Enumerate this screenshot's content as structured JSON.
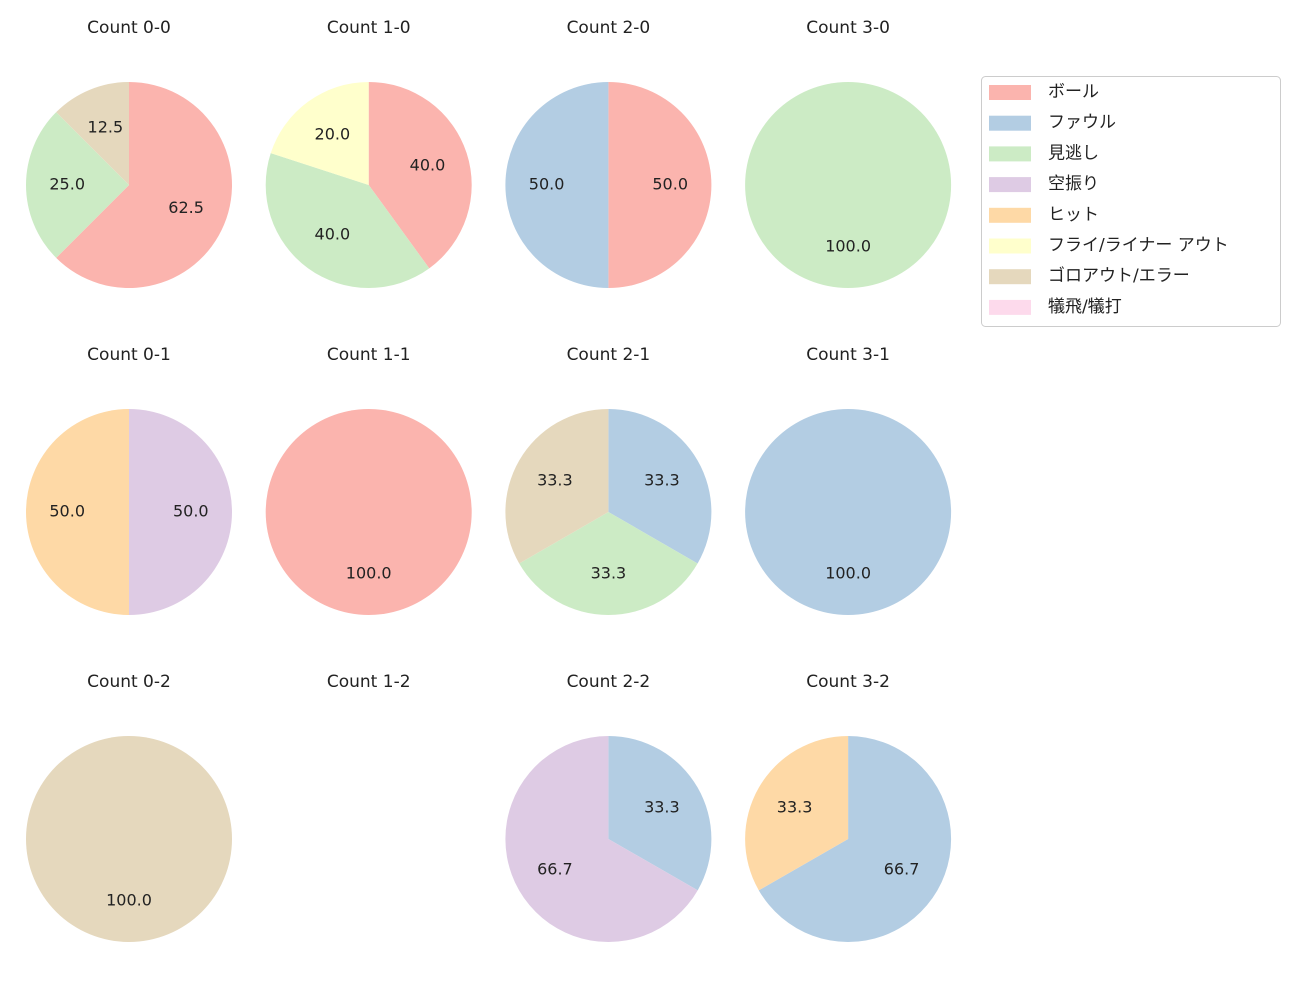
{
  "legend": {
    "labels": [
      "ボール",
      "ファウル",
      "見逃し",
      "空振り",
      "ヒット",
      "フライ/ライナー アウト",
      "ゴロアウト/エラー",
      "犠飛/犠打"
    ],
    "colors": [
      "#fbb4ae",
      "#b3cde3",
      "#ccebc5",
      "#decbe4",
      "#fed9a6",
      "#ffffcc",
      "#e5d8bd",
      "#fddaec"
    ]
  },
  "chart_data": [
    {
      "type": "pie",
      "title": "Count 0-0",
      "values": [
        62.5,
        null,
        25,
        null,
        null,
        null,
        12.5,
        null
      ],
      "value_labels": [
        "62.5",
        null,
        "25.0",
        null,
        null,
        null,
        "12.5",
        null
      ]
    },
    {
      "type": "pie",
      "title": "Count 1-0",
      "values": [
        40,
        null,
        40,
        null,
        null,
        20,
        null,
        null
      ],
      "value_labels": [
        "40.0",
        null,
        "40.0",
        null,
        null,
        "20.0",
        null,
        null
      ]
    },
    {
      "type": "pie",
      "title": "Count 2-0",
      "values": [
        50,
        50,
        null,
        null,
        null,
        null,
        null,
        null
      ],
      "value_labels": [
        "50.0",
        "50.0",
        null,
        null,
        null,
        null,
        null,
        null
      ]
    },
    {
      "type": "pie",
      "title": "Count 3-0",
      "values": [
        null,
        null,
        100,
        null,
        null,
        null,
        null,
        null
      ],
      "value_labels": [
        null,
        null,
        "100.0",
        null,
        null,
        null,
        null,
        null
      ]
    },
    {
      "type": "pie",
      "title": "Count 0-1",
      "values": [
        null,
        null,
        null,
        50,
        50,
        null,
        null,
        null
      ],
      "value_labels": [
        null,
        null,
        null,
        "50.0",
        "50.0",
        null,
        null,
        null
      ]
    },
    {
      "type": "pie",
      "title": "Count 1-1",
      "values": [
        100,
        null,
        null,
        null,
        null,
        null,
        null,
        null
      ],
      "value_labels": [
        "100.0",
        null,
        null,
        null,
        null,
        null,
        null,
        null
      ]
    },
    {
      "type": "pie",
      "title": "Count 2-1",
      "values": [
        null,
        33.3,
        33.3,
        null,
        null,
        null,
        33.3,
        null
      ],
      "value_labels": [
        null,
        "33.3",
        "33.3",
        null,
        null,
        null,
        "33.3",
        null
      ]
    },
    {
      "type": "pie",
      "title": "Count 3-1",
      "values": [
        null,
        100,
        null,
        null,
        null,
        null,
        null,
        null
      ],
      "value_labels": [
        null,
        "100.0",
        null,
        null,
        null,
        null,
        null,
        null
      ]
    },
    {
      "type": "pie",
      "title": "Count 0-2",
      "values": [
        null,
        null,
        null,
        null,
        null,
        null,
        100,
        null
      ],
      "value_labels": [
        null,
        null,
        null,
        null,
        null,
        null,
        "100.0",
        null
      ]
    },
    {
      "type": "pie",
      "title": "Count 1-2",
      "values": [
        null,
        null,
        null,
        null,
        null,
        null,
        null,
        null
      ],
      "value_labels": [
        null,
        null,
        null,
        null,
        null,
        null,
        null,
        null
      ]
    },
    {
      "type": "pie",
      "title": "Count 2-2",
      "values": [
        null,
        33.3,
        null,
        66.7,
        null,
        null,
        null,
        null
      ],
      "value_labels": [
        null,
        "33.3",
        null,
        "66.7",
        null,
        null,
        null,
        null
      ]
    },
    {
      "type": "pie",
      "title": "Count 3-2",
      "values": [
        null,
        66.7,
        null,
        null,
        33.3,
        null,
        null,
        null
      ],
      "value_labels": [
        null,
        "66.7",
        null,
        null,
        "33.3",
        null,
        null,
        null
      ]
    }
  ]
}
